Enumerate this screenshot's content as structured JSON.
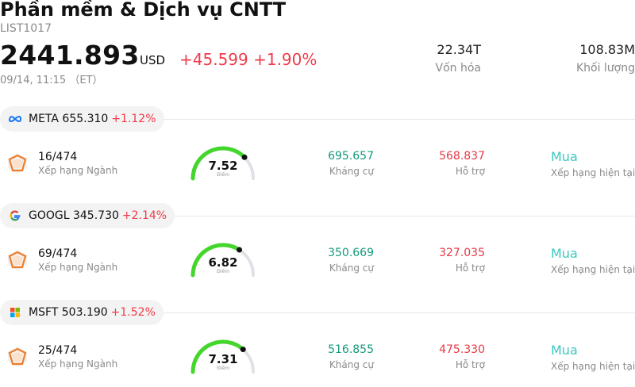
{
  "header": {
    "title": "Phần mềm & Dịch vụ CNTT",
    "code": "LIST1017",
    "price": "2441.893",
    "currency": "USD",
    "change": "+45.599 +1.90%",
    "time": "09/14, 11:15 （ET）"
  },
  "stats": [
    {
      "value": "22.34T",
      "label": "Vốn hóa"
    },
    {
      "value": "108.83M",
      "label": "Khối lượng"
    }
  ],
  "stocks": [
    {
      "logo": "meta-logo-icon",
      "symbol": "META 655.310",
      "change": "+1.12%",
      "rank": "16/474",
      "rank_label": "Xếp hạng Ngành",
      "score": "7.52",
      "score_value": 7.52,
      "score_label": "Điểm",
      "resistance": "695.657",
      "resistance_label": "Kháng cự",
      "support": "568.837",
      "support_label": "Hỗ trợ",
      "rating": "Mua",
      "rating_label": "Xếp hạng hiện tại"
    },
    {
      "logo": "google-logo-icon",
      "symbol": "GOOGL 345.730",
      "change": "+2.14%",
      "rank": "69/474",
      "rank_label": "Xếp hạng Ngành",
      "score": "6.82",
      "score_value": 6.82,
      "score_label": "Điểm",
      "resistance": "350.669",
      "resistance_label": "Kháng cự",
      "support": "327.035",
      "support_label": "Hỗ trợ",
      "rating": "Mua",
      "rating_label": "Xếp hạng hiện tại"
    },
    {
      "logo": "microsoft-logo-icon",
      "symbol": "MSFT 503.190",
      "change": "+1.52%",
      "rank": "25/474",
      "rank_label": "Xếp hạng Ngành",
      "score": "7.31",
      "score_value": 7.31,
      "score_label": "Điểm",
      "resistance": "516.855",
      "resistance_label": "Kháng cự",
      "support": "475.330",
      "support_label": "Hỗ trợ",
      "rating": "Mua",
      "rating_label": "Xếp hạng hiện tại"
    }
  ],
  "colors": {
    "up_red": "#ef3b4a",
    "resistance_green": "#139a7c",
    "rating_teal": "#3cc8c0",
    "gauge_green": "#44d62c",
    "gauge_track": "#e0e0e6"
  }
}
